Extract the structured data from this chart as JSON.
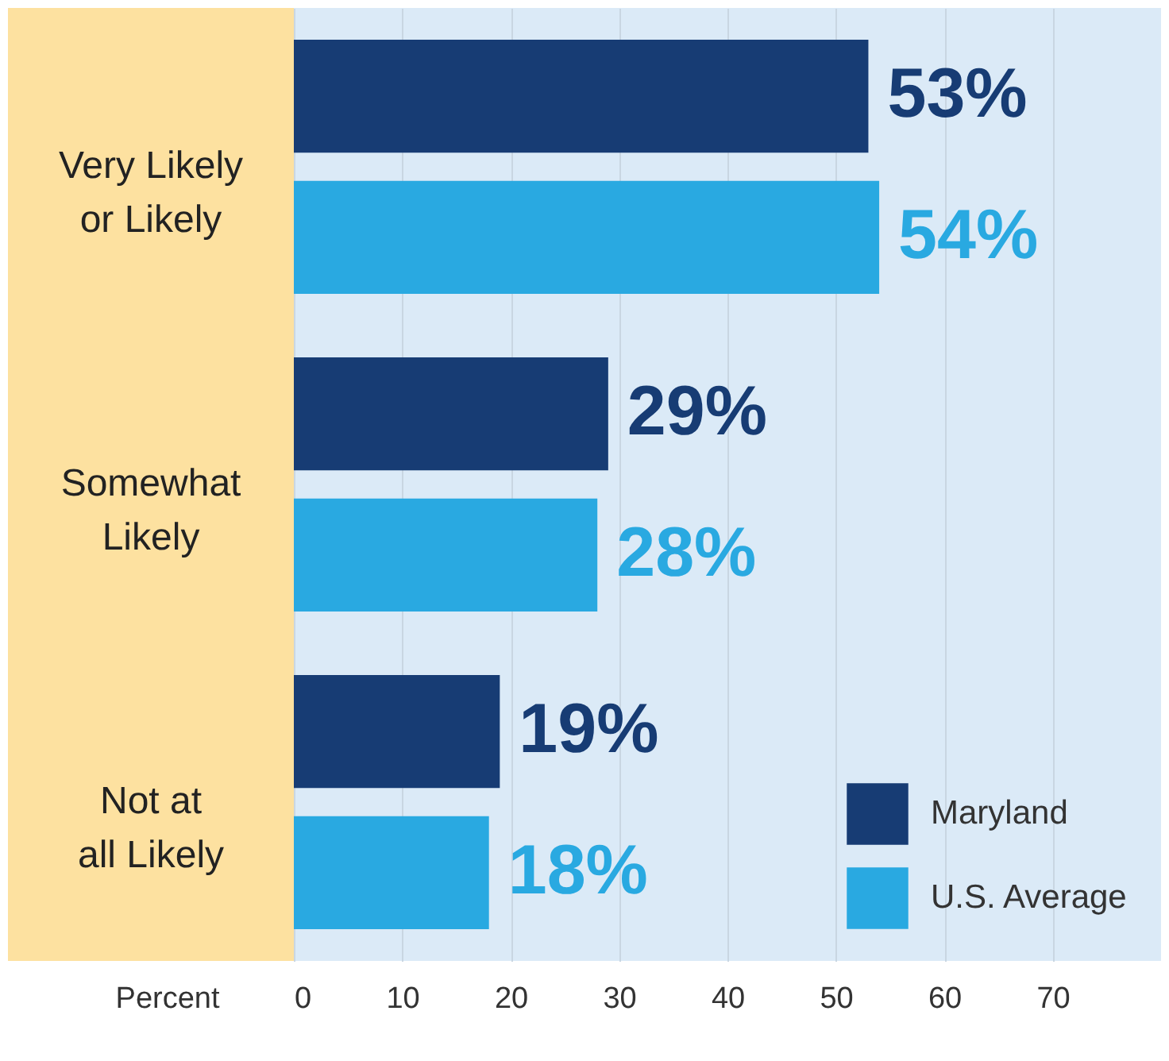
{
  "chart_data": {
    "type": "bar",
    "orientation": "horizontal",
    "categories": [
      "Very Likely or Likely",
      "Somewhat Likely",
      "Not at all Likely"
    ],
    "series": [
      {
        "name": "Maryland",
        "color": "#173c74",
        "values": [
          53,
          29,
          19
        ],
        "value_labels": [
          "53%",
          "29%",
          "19%"
        ]
      },
      {
        "name": "U.S. Average",
        "color": "#29a9e1",
        "values": [
          54,
          28,
          18
        ],
        "value_labels": [
          "54%",
          "28%",
          "18%"
        ]
      }
    ],
    "xlabel": "Percent",
    "xlim": [
      0,
      80
    ],
    "xticks": [
      0,
      10,
      20,
      30,
      40,
      50,
      60,
      70
    ],
    "grid": "x",
    "legend": "bottom right"
  }
}
